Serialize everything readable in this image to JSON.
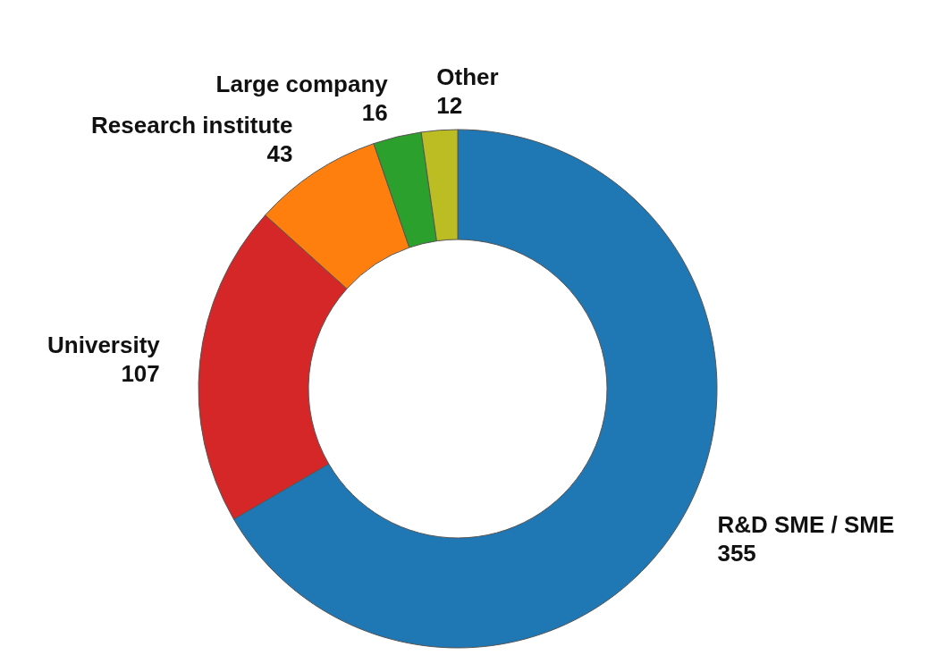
{
  "chart_data": {
    "type": "donut",
    "categories": [
      "R&D SME / SME",
      "University",
      "Research institute",
      "Large company",
      "Other"
    ],
    "values": [
      355,
      107,
      43,
      16,
      12
    ],
    "colors": [
      "#1f77b4",
      "#d62728",
      "#ff7f0e",
      "#2ca02c",
      "#bcbd22"
    ],
    "data_labels": true
  }
}
